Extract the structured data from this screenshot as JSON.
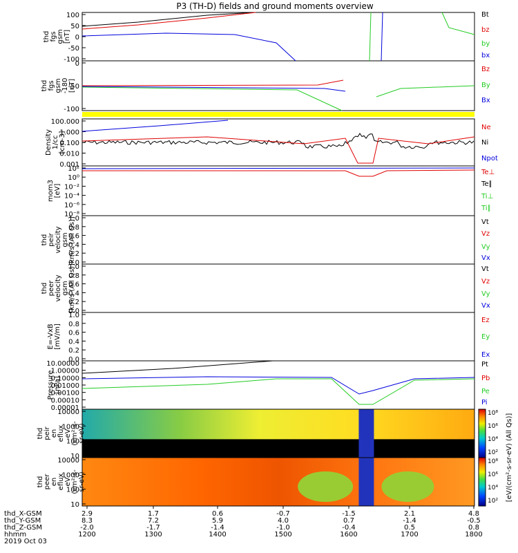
{
  "title": "P3 (TH-D) fields and ground moments overview",
  "colors": {
    "black": "#000000",
    "red": "#e00000",
    "green": "#22cc22",
    "blue": "#0000dd",
    "yellow": "#ffff00"
  },
  "chart_data": [
    {
      "type": "line",
      "ylabel": [
        "thd",
        "fgs",
        "gsm",
        "[nT]"
      ],
      "ylim": [
        -100,
        100
      ],
      "yticks": [
        "100",
        "50",
        "0",
        "-50",
        "-100"
      ],
      "legend": [
        {
          "label": "Bt",
          "color": "black"
        },
        {
          "label": "bz",
          "color": "red"
        },
        {
          "label": "by",
          "color": "green"
        },
        {
          "label": "bx",
          "color": "blue"
        }
      ]
    },
    {
      "type": "line",
      "ylabel": [
        "thd",
        "fgs",
        "gsm",
        "-180",
        "[nT]"
      ],
      "ylim": [
        -120,
        40
      ],
      "yticks": [
        "0",
        "-50",
        "-100"
      ],
      "legend": [
        {
          "label": "Bz",
          "color": "red"
        },
        {
          "label": "By",
          "color": "green"
        },
        {
          "label": "Bx",
          "color": "blue"
        }
      ]
    },
    {
      "type": "line",
      "ylabel": [
        "Density",
        "1/cc",
        "[cm-3]"
      ],
      "log": true,
      "yticks": [
        "100.000",
        "1.000",
        "0.100",
        "0.010",
        "0.001"
      ],
      "legend": [
        {
          "label": "Ne",
          "color": "red"
        },
        {
          "label": "Ni",
          "color": "black"
        },
        {
          "label": "Npot",
          "color": "blue"
        }
      ]
    },
    {
      "type": "line",
      "ylabel": [
        "mom3",
        "[eV]"
      ],
      "log": true,
      "yticks": [
        "10²",
        "10⁰",
        "10⁻²",
        "10⁻⁴",
        "10⁻⁶",
        "10⁻⁸"
      ],
      "legend": [
        {
          "label": "Te⊥",
          "color": "red"
        },
        {
          "label": "Te∥",
          "color": "black"
        },
        {
          "label": "Ti⊥",
          "color": "green"
        },
        {
          "label": "Ti∥",
          "color": "green"
        }
      ]
    },
    {
      "type": "line",
      "ylabel": [
        "thd",
        "peir",
        "velocity",
        "gsm",
        "km/s (All Qs)]"
      ],
      "ylim": [
        0,
        1
      ],
      "yticks": [
        "1.0",
        "0.8",
        "0.6",
        "0.4",
        "0.2",
        "0.0"
      ],
      "legend": [
        {
          "label": "Vt",
          "color": "black"
        },
        {
          "label": "Vz",
          "color": "red"
        },
        {
          "label": "Vy",
          "color": "green"
        },
        {
          "label": "Vx",
          "color": "blue"
        }
      ]
    },
    {
      "type": "line",
      "ylabel": [
        "thd",
        "peer",
        "velocity",
        "gsm",
        "[km/s (All Qs)]"
      ],
      "ylim": [
        0,
        1
      ],
      "yticks": [
        "1.0",
        "0.8",
        "0.6",
        "0.4",
        "0.2",
        "0.0"
      ],
      "legend": [
        {
          "label": "Vt",
          "color": "black"
        },
        {
          "label": "Vz",
          "color": "red"
        },
        {
          "label": "Vy",
          "color": "green"
        },
        {
          "label": "Vx",
          "color": "blue"
        }
      ]
    },
    {
      "type": "line",
      "ylabel": [
        "E=-VxB",
        "[mV/m]"
      ],
      "ylim": [
        0,
        1
      ],
      "yticks": [
        "1.0",
        "0.8",
        "0.6",
        "0.4",
        "0.2",
        "0.0"
      ],
      "legend": [
        {
          "label": "Ez",
          "color": "red"
        },
        {
          "label": "Ey",
          "color": "green"
        },
        {
          "label": "Ex",
          "color": "blue"
        }
      ]
    },
    {
      "type": "line",
      "ylabel": [
        "Pressure",
        "[nPa]"
      ],
      "log": true,
      "yticks": [
        "10.00000",
        "1.00000",
        "0.10000",
        "0.01000",
        "0.00100",
        "0.00010",
        "0.00001"
      ],
      "legend": [
        {
          "label": "Pt",
          "color": "black"
        },
        {
          "label": "Pb",
          "color": "red"
        },
        {
          "label": "Pe",
          "color": "green"
        },
        {
          "label": "Pi",
          "color": "blue"
        }
      ]
    },
    {
      "type": "heatmap",
      "ylabel": [
        "thd",
        "peir",
        "en",
        "eflux",
        "eV",
        "(cm²-s-",
        "sr-eV)"
      ],
      "yticks": [
        "10000",
        "1000",
        "100",
        "10"
      ]
    },
    {
      "type": "heatmap",
      "ylabel": [
        "thd",
        "peer",
        "en",
        "eflux",
        "eV",
        "(cm²-s-",
        "sr-eV)"
      ],
      "yticks": [
        "10000",
        "1000",
        "100",
        "10"
      ]
    }
  ],
  "colorbar": {
    "label": "[eV/(cm²-s-sr-eV) (All Qs)]",
    "ticks_top": [
      "10⁸",
      "10⁶",
      "10⁴",
      "10²"
    ],
    "ticks_bottom": [
      "10⁸",
      "10⁶",
      "10⁴",
      "10²"
    ]
  },
  "xaxis": {
    "rows": [
      {
        "label": "thd_X-GSM",
        "values": [
          "2.9",
          "1.7",
          "0.6",
          "-0.7",
          "-1.5",
          "2.1",
          "4.8"
        ]
      },
      {
        "label": "thd_Y-GSM",
        "values": [
          "8.3",
          "7.2",
          "5.9",
          "4.0",
          "0.7",
          "-1.4",
          "-0.5"
        ]
      },
      {
        "label": "thd_Z-GSM",
        "values": [
          "-2.0",
          "-1.7",
          "-1.4",
          "-1.0",
          "-0.4",
          "0.5",
          "0.8"
        ]
      },
      {
        "label": "hhmm",
        "values": [
          "1200",
          "1300",
          "1400",
          "1500",
          "1600",
          "1700",
          "1800"
        ]
      }
    ],
    "date": "2019 Oct 03"
  }
}
